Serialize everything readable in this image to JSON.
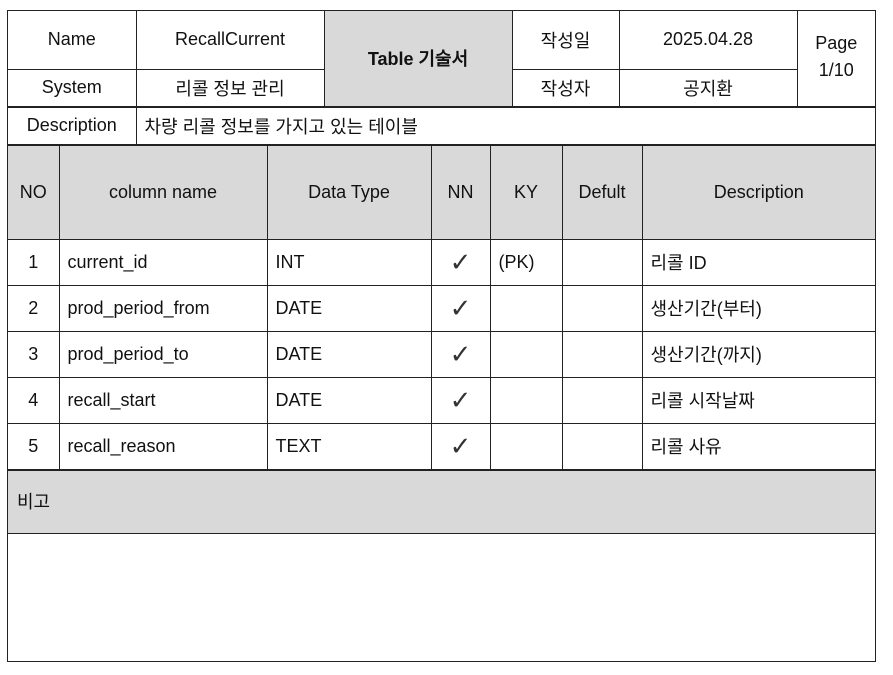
{
  "header": {
    "name_label": "Name",
    "name_value": "RecallCurrent",
    "doc_title": "Table 기술서",
    "written_date_label": "작성일",
    "written_date_value": "2025.04.28",
    "page_label": "Page",
    "page_value": "1/10",
    "system_label": "System",
    "system_value": "리콜 정보 관리",
    "author_label": "작성자",
    "author_value": "공지환",
    "description_label": "Description",
    "description_value": "차량 리콜 정보를 가지고 있는 테이블"
  },
  "columns": {
    "no": "NO",
    "column_name": "column name",
    "data_type": "Data Type",
    "nn": "NN",
    "ky": "KY",
    "default": "Defult",
    "description": "Description"
  },
  "rows": [
    {
      "no": "1",
      "name": "current_id",
      "type": "INT",
      "nn": "✓",
      "ky": "(PK)",
      "default": "",
      "desc": "리콜 ID"
    },
    {
      "no": "2",
      "name": "prod_period_from",
      "type": "DATE",
      "nn": "✓",
      "ky": "",
      "default": "",
      "desc": "생산기간(부터)"
    },
    {
      "no": "3",
      "name": "prod_period_to",
      "type": "DATE",
      "nn": "✓",
      "ky": "",
      "default": "",
      "desc": "생산기간(까지)"
    },
    {
      "no": "4",
      "name": "recall_start",
      "type": "DATE",
      "nn": "✓",
      "ky": "",
      "default": "",
      "desc": "리콜 시작날짜"
    },
    {
      "no": "5",
      "name": "recall_reason",
      "type": "TEXT",
      "nn": "✓",
      "ky": "",
      "default": "",
      "desc": "리콜 사유"
    }
  ],
  "remarks": {
    "label": "비고",
    "content": ""
  }
}
